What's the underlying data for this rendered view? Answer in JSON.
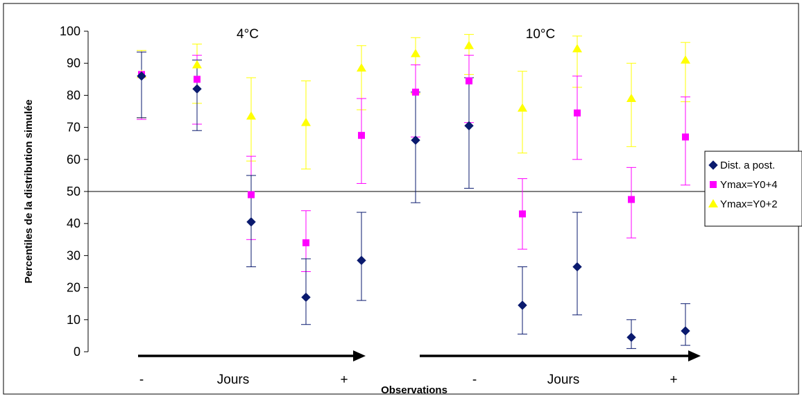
{
  "chart_data": {
    "type": "scatter",
    "ylabel": "Percentiles de la distribution simulée",
    "xlabel": "Observations",
    "ylim": [
      0,
      100
    ],
    "yticks": [
      0,
      10,
      20,
      30,
      40,
      50,
      60,
      70,
      80,
      90,
      100
    ],
    "reference_line": 50,
    "grid": false,
    "legend_placement": "right",
    "panels": [
      {
        "title": "4°C",
        "arrow": {
          "start_label": "-",
          "middle_label": "Jours",
          "end_label": "+"
        }
      },
      {
        "title": "10°C",
        "arrow": {
          "start_label": "-",
          "middle_label": "Jours",
          "end_label": "+"
        }
      }
    ],
    "x": [
      1,
      2,
      3,
      4,
      5,
      6,
      7,
      8,
      9,
      10,
      11,
      12
    ],
    "series": [
      {
        "name": "Dist. a post.",
        "color": "#0a1a6e",
        "marker": "diamond",
        "values": [
          86,
          82,
          40.5,
          17,
          28.5,
          66,
          70.5,
          14.5,
          26.5,
          4.5,
          6.5
        ],
        "x": [
          1,
          2,
          3,
          4,
          5,
          6,
          7,
          8,
          9,
          11,
          12
        ],
        "lower": [
          73,
          69,
          26.5,
          8.5,
          16,
          46.5,
          51,
          5.5,
          11.5,
          1,
          2
        ],
        "upper": [
          93.5,
          91,
          55,
          29,
          43.5,
          81,
          85.5,
          26.5,
          43.5,
          10,
          15
        ]
      },
      {
        "name": "Ymax=Y0+4",
        "color": "#ff00ff",
        "marker": "square",
        "values": [
          86.5,
          85,
          49,
          34,
          67.5,
          81,
          84.5,
          43,
          74.5,
          47.5,
          67
        ],
        "x": [
          1,
          2,
          3,
          4,
          5,
          6,
          7,
          8,
          9,
          11,
          12
        ],
        "lower": [
          72.5,
          71,
          35,
          25,
          52.5,
          67,
          71.5,
          32,
          60,
          35.5,
          52
        ],
        "upper": [
          93.5,
          92.5,
          61,
          44,
          79,
          89.5,
          92.5,
          54,
          86,
          57.5,
          79.5
        ]
      },
      {
        "name": "Ymax=Y0+2",
        "color": "#ffff00",
        "marker": "triangle",
        "values": [
          86.5,
          89.5,
          73.5,
          71.5,
          88.5,
          93,
          95.5,
          76,
          94.5,
          79,
          91
        ],
        "x": [
          1,
          2,
          3,
          4,
          5,
          6,
          7,
          8,
          9,
          11,
          12
        ],
        "lower": [
          73,
          77.5,
          59.5,
          57,
          75.5,
          80.5,
          86.5,
          62,
          82.5,
          64,
          78
        ],
        "upper": [
          94,
          96,
          85.5,
          84.5,
          95.5,
          98,
          99,
          87.5,
          98.5,
          90,
          96.5
        ]
      }
    ]
  }
}
